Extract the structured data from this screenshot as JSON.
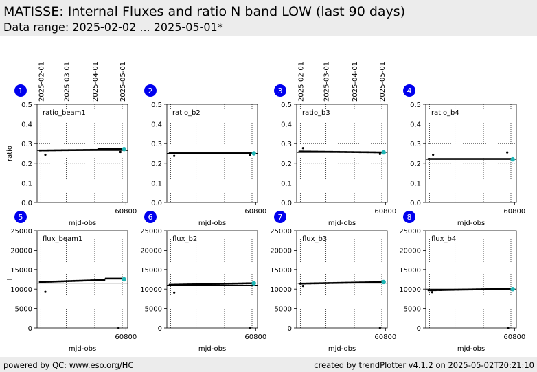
{
  "header": {
    "title": "MATISSE: Internal Fluxes and ratio N band LOW (last 90 days)",
    "subtitle": "Data range: 2025-02-02 ... 2025-05-01*"
  },
  "footer": {
    "left": "powered by QC: www.eso.org/HC",
    "right": "created by trendPlotter v4.1.2 on 2025-05-02T20:21:10"
  },
  "colors": {
    "points": "#000000",
    "latest": "#1fb5b5",
    "badge": "#0000ee",
    "reference_line": "#000000"
  },
  "date_ticks": [
    {
      "label": "2025-02-01",
      "x": 60707
    },
    {
      "label": "2025-03-01",
      "x": 60735
    },
    {
      "label": "2025-04-01",
      "x": 60766
    },
    {
      "label": "2025-05-01",
      "x": 60796
    }
  ],
  "chart_data": [
    {
      "type": "scatter",
      "panel": "1",
      "label": "ratio_beam1",
      "xlabel": "mjd-obs",
      "ylabel": "ratio",
      "xlim": [
        60703,
        60802
      ],
      "ylim": [
        0,
        0.5
      ],
      "yticks": [
        0.0,
        0.1,
        0.2,
        0.3,
        0.4,
        0.5
      ],
      "ytick_labels": [
        "0.0",
        "0.1",
        "0.2",
        "0.3",
        "0.4",
        "0.5"
      ],
      "xticks": [
        60800
      ],
      "xtick_labels": [
        "60800"
      ],
      "hlines_dotted": [
        0.2,
        0.3
      ],
      "ref_line": 0.265,
      "series": [
        {
          "x_start": 60706,
          "x_end": 60796,
          "y_start": 0.265,
          "y_end": 0.27,
          "step": 1.5
        }
      ],
      "segments": [
        {
          "from": 60770,
          "to": 60796,
          "y": 0.273
        }
      ],
      "outliers": [
        {
          "x": 60712,
          "y": 0.243
        },
        {
          "x": 60794,
          "y": 0.257
        }
      ],
      "latest": {
        "x": 60798,
        "y": 0.272
      }
    },
    {
      "type": "scatter",
      "panel": "2",
      "label": "ratio_b2",
      "xlabel": "mjd-obs",
      "ylabel": "",
      "xlim": [
        60703,
        60802
      ],
      "ylim": [
        0,
        0.5
      ],
      "yticks": [
        0.0,
        0.1,
        0.2,
        0.3,
        0.4,
        0.5
      ],
      "ytick_labels": [
        "0.0",
        "0.1",
        "0.2",
        "0.3",
        "0.4",
        "0.5"
      ],
      "xticks": [
        60800
      ],
      "xtick_labels": [
        "60800"
      ],
      "hlines_dotted": [],
      "ref_line": 0.25,
      "series": [
        {
          "x_start": 60706,
          "x_end": 60796,
          "y_start": 0.251,
          "y_end": 0.251,
          "step": 1.5
        }
      ],
      "segments": [],
      "outliers": [
        {
          "x": 60711,
          "y": 0.237
        },
        {
          "x": 60794,
          "y": 0.24
        }
      ],
      "latest": {
        "x": 60798,
        "y": 0.25
      }
    },
    {
      "type": "scatter",
      "panel": "3",
      "label": "ratio_b3",
      "xlabel": "mjd-obs",
      "ylabel": "",
      "xlim": [
        60703,
        60802
      ],
      "ylim": [
        0,
        0.5
      ],
      "yticks": [
        0.0,
        0.1,
        0.2,
        0.3,
        0.4,
        0.5
      ],
      "ytick_labels": [
        "0.0",
        "0.1",
        "0.2",
        "0.3",
        "0.4",
        "0.5"
      ],
      "xticks": [
        60800
      ],
      "xtick_labels": [
        "60800"
      ],
      "hlines_dotted": [
        0.2,
        0.3
      ],
      "ref_line": 0.255,
      "series": [
        {
          "x_start": 60706,
          "x_end": 60796,
          "y_start": 0.26,
          "y_end": 0.255,
          "step": 1.5
        }
      ],
      "segments": [],
      "outliers": [
        {
          "x": 60710,
          "y": 0.277
        },
        {
          "x": 60794,
          "y": 0.247
        }
      ],
      "latest": {
        "x": 60798,
        "y": 0.255
      }
    },
    {
      "type": "scatter",
      "panel": "4",
      "label": "ratio_b4",
      "xlabel": "mjd-obs",
      "ylabel": "",
      "xlim": [
        60703,
        60802
      ],
      "ylim": [
        0,
        0.5
      ],
      "yticks": [
        0.0,
        0.1,
        0.2,
        0.3,
        0.4,
        0.5
      ],
      "ytick_labels": [
        "0.0",
        "0.1",
        "0.2",
        "0.3",
        "0.4",
        "0.5"
      ],
      "xticks": [
        60800
      ],
      "xtick_labels": [
        "60800"
      ],
      "hlines_dotted": [
        0.2,
        0.3
      ],
      "ref_line": 0.22,
      "series": [
        {
          "x_start": 60706,
          "x_end": 60796,
          "y_start": 0.222,
          "y_end": 0.222,
          "step": 1.5
        }
      ],
      "segments": [],
      "outliers": [
        {
          "x": 60711,
          "y": 0.243
        },
        {
          "x": 60792,
          "y": 0.255
        }
      ],
      "latest": {
        "x": 60798,
        "y": 0.22
      }
    },
    {
      "type": "scatter",
      "panel": "5",
      "label": "flux_beam1",
      "xlabel": "mjd-obs",
      "ylabel": "I",
      "xlim": [
        60703,
        60802
      ],
      "ylim": [
        0,
        25000
      ],
      "yticks": [
        0,
        5000,
        10000,
        15000,
        20000,
        25000
      ],
      "ytick_labels": [
        "0",
        "5000",
        "10000",
        "15000",
        "20000",
        "25000"
      ],
      "xticks": [
        60800
      ],
      "xtick_labels": [
        "60800"
      ],
      "hlines_dotted": [],
      "ref_line": 11500,
      "series": [
        {
          "x_start": 60706,
          "x_end": 60796,
          "y_start": 11800,
          "y_end": 12500,
          "step": 1.5
        }
      ],
      "segments": [
        {
          "from": 60777,
          "to": 60796,
          "y": 12700
        }
      ],
      "outliers": [
        {
          "x": 60712,
          "y": 9300
        },
        {
          "x": 60792,
          "y": 0
        }
      ],
      "latest": {
        "x": 60798,
        "y": 12500
      }
    },
    {
      "type": "scatter",
      "panel": "6",
      "label": "flux_b2",
      "xlabel": "mjd-obs",
      "ylabel": "",
      "xlim": [
        60703,
        60802
      ],
      "ylim": [
        0,
        25000
      ],
      "yticks": [
        0,
        5000,
        10000,
        15000,
        20000,
        25000
      ],
      "ytick_labels": [
        "0",
        "5000",
        "10000",
        "15000",
        "20000",
        "25000"
      ],
      "xticks": [
        60800
      ],
      "xtick_labels": [
        "60800"
      ],
      "hlines_dotted": [],
      "ref_line": 11000,
      "series": [
        {
          "x_start": 60706,
          "x_end": 60796,
          "y_start": 11100,
          "y_end": 11500,
          "step": 1.5
        }
      ],
      "segments": [],
      "outliers": [
        {
          "x": 60711,
          "y": 9100
        },
        {
          "x": 60794,
          "y": 0
        }
      ],
      "latest": {
        "x": 60798,
        "y": 11500
      }
    },
    {
      "type": "scatter",
      "panel": "7",
      "label": "flux_b3",
      "xlabel": "mjd-obs",
      "ylabel": "",
      "xlim": [
        60703,
        60802
      ],
      "ylim": [
        0,
        25000
      ],
      "yticks": [
        0,
        5000,
        10000,
        15000,
        20000,
        25000
      ],
      "ytick_labels": [
        "0",
        "5000",
        "10000",
        "15000",
        "20000",
        "25000"
      ],
      "xticks": [
        60800
      ],
      "xtick_labels": [
        "60800"
      ],
      "hlines_dotted": [],
      "ref_line": 11500,
      "series": [
        {
          "x_start": 60706,
          "x_end": 60796,
          "y_start": 11400,
          "y_end": 11800,
          "step": 1.5
        }
      ],
      "segments": [],
      "outliers": [
        {
          "x": 60710,
          "y": 10800
        },
        {
          "x": 60794,
          "y": 0
        }
      ],
      "latest": {
        "x": 60798,
        "y": 11800
      }
    },
    {
      "type": "scatter",
      "panel": "8",
      "label": "flux_b4",
      "xlabel": "mjd-obs",
      "ylabel": "",
      "xlim": [
        60703,
        60802
      ],
      "ylim": [
        0,
        25000
      ],
      "yticks": [
        0,
        5000,
        10000,
        15000,
        20000,
        25000
      ],
      "ytick_labels": [
        "0",
        "5000",
        "10000",
        "15000",
        "20000",
        "25000"
      ],
      "xticks": [
        60800
      ],
      "xtick_labels": [
        "60800"
      ],
      "hlines_dotted": [],
      "ref_line": 10000,
      "series": [
        {
          "x_start": 60706,
          "x_end": 60796,
          "y_start": 9700,
          "y_end": 10100,
          "step": 1.5
        }
      ],
      "segments": [],
      "outliers": [
        {
          "x": 60710,
          "y": 9200
        },
        {
          "x": 60793,
          "y": 0
        }
      ],
      "latest": {
        "x": 60798,
        "y": 10000
      }
    }
  ]
}
